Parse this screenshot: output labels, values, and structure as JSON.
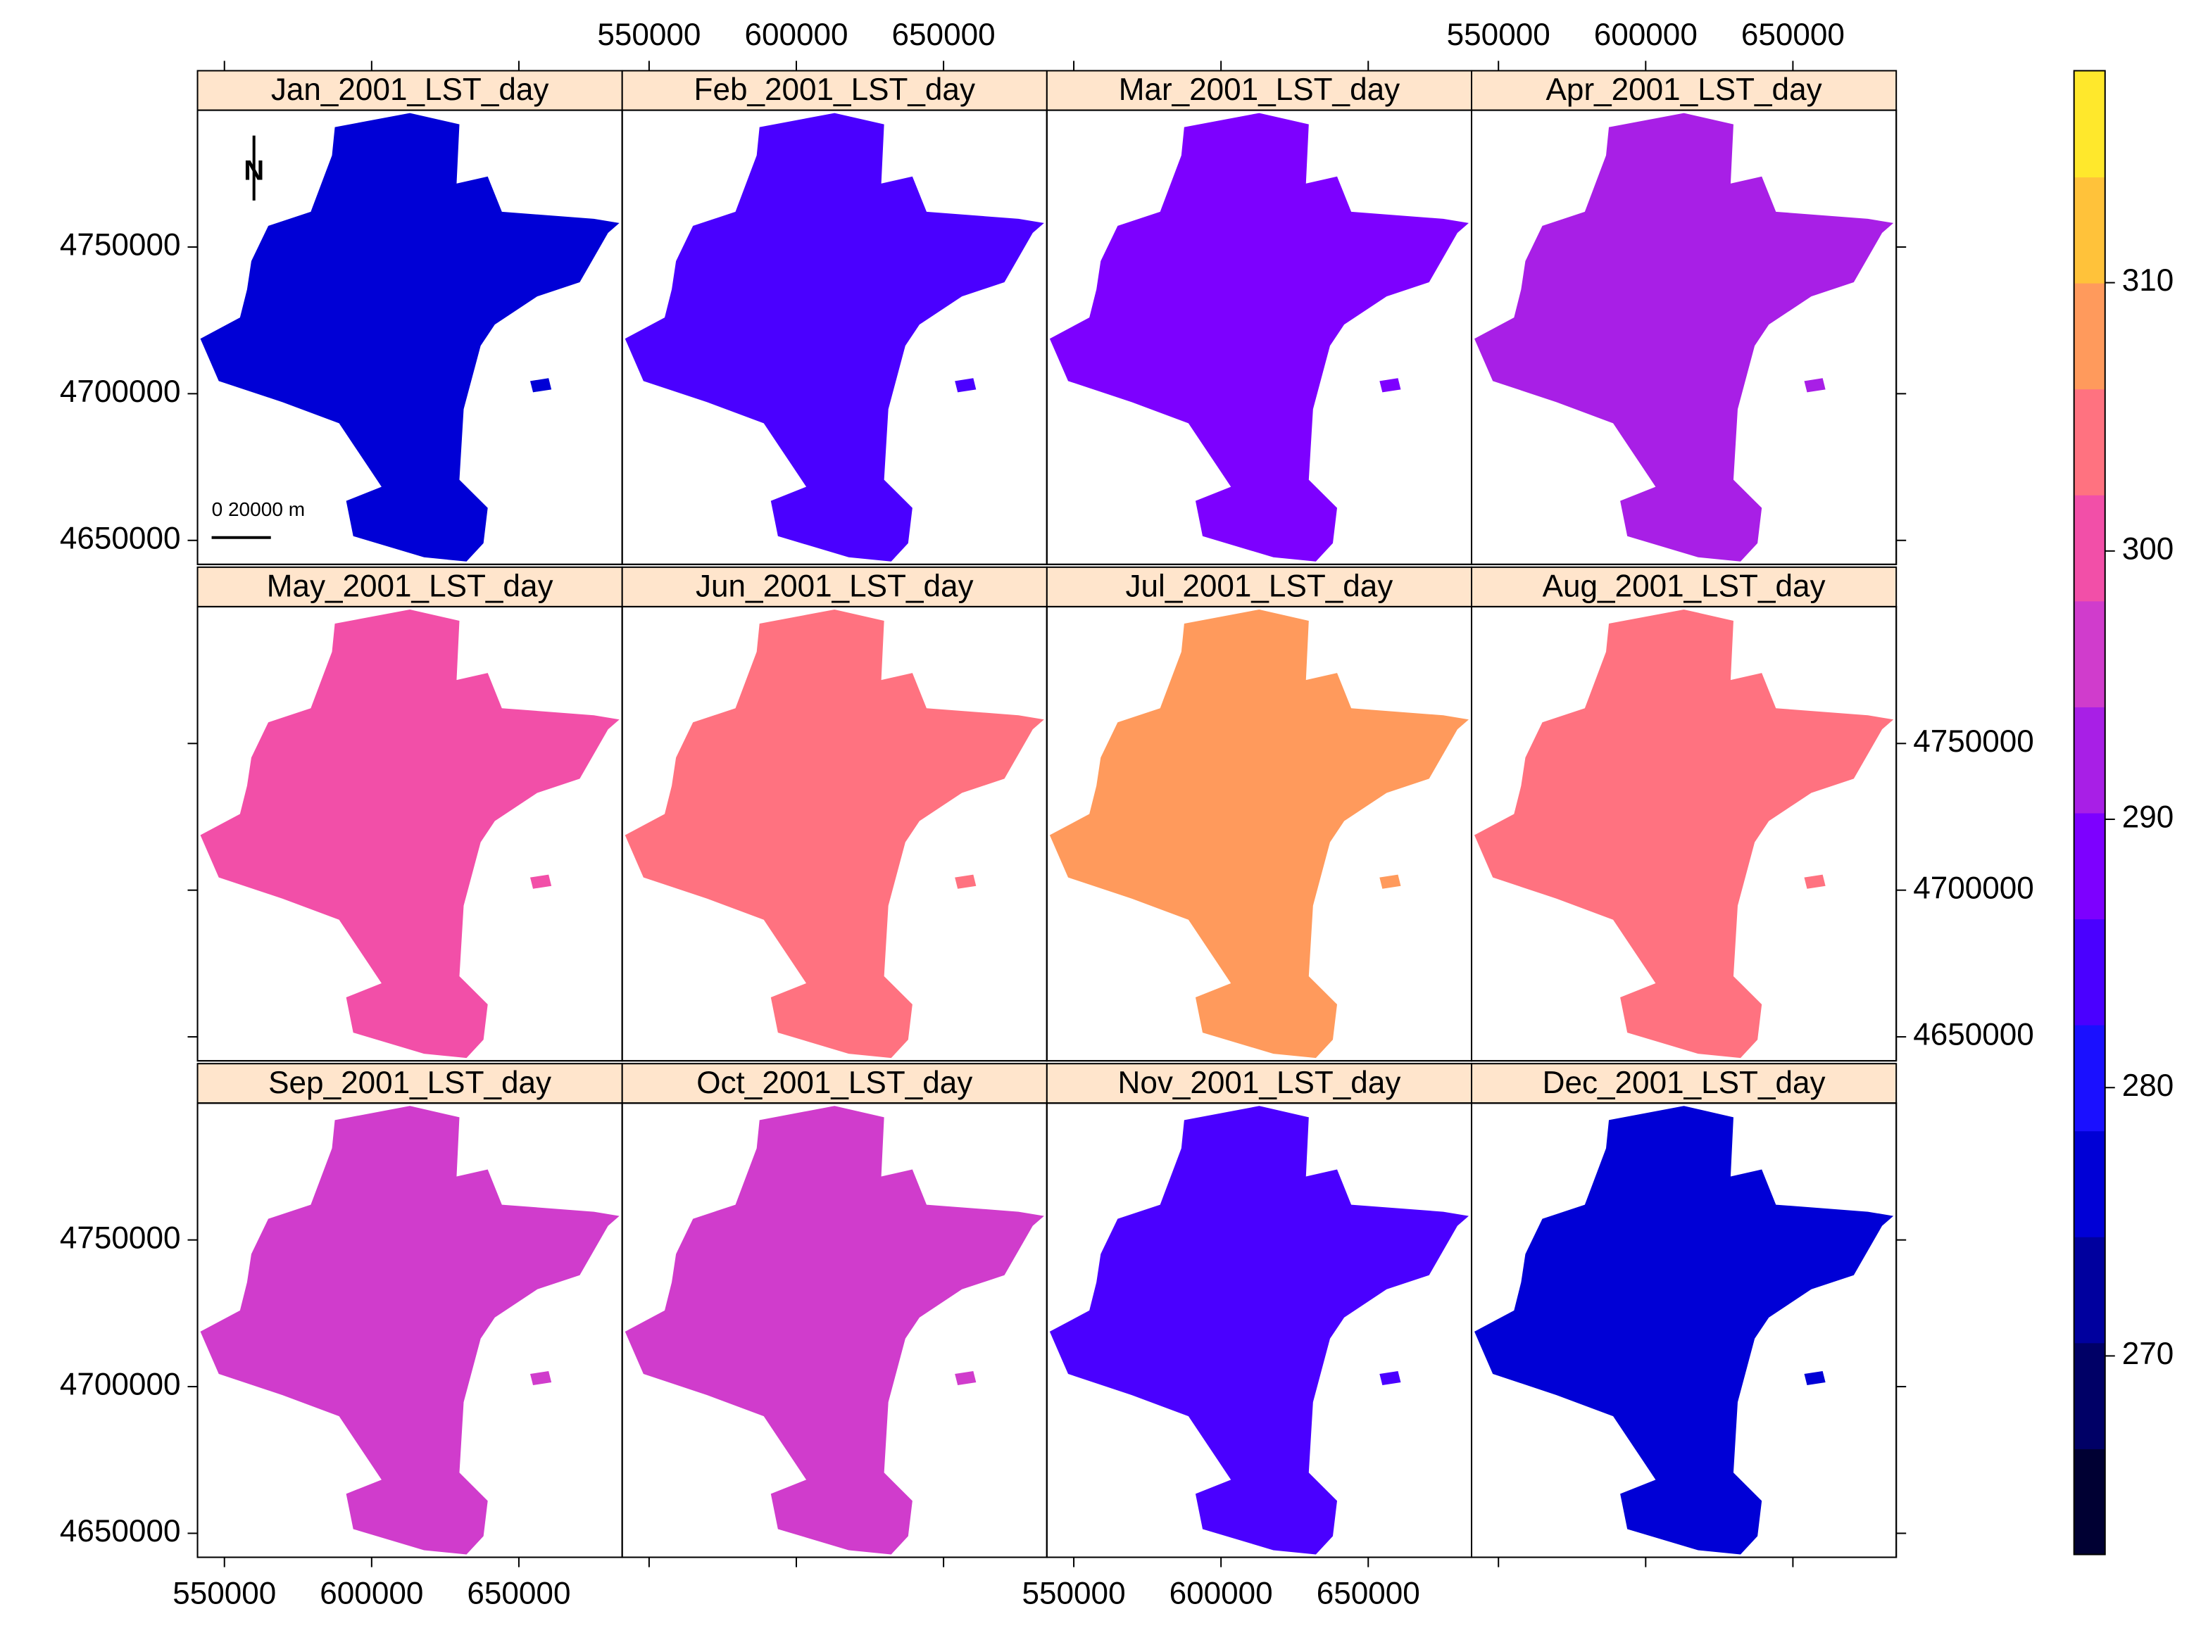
{
  "chart_data": {
    "type": "raster-panels",
    "panels": [
      {
        "title": "Jan_2001_LST_day",
        "value": 275
      },
      {
        "title": "Feb_2001_LST_day",
        "value": 283
      },
      {
        "title": "Mar_2001_LST_day",
        "value": 289
      },
      {
        "title": "Apr_2001_LST_day",
        "value": 293
      },
      {
        "title": "May_2001_LST_day",
        "value": 299
      },
      {
        "title": "Jun_2001_LST_day",
        "value": 304
      },
      {
        "title": "Jul_2001_LST_day",
        "value": 307
      },
      {
        "title": "Aug_2001_LST_day",
        "value": 305
      },
      {
        "title": "Sep_2001_LST_day",
        "value": 298
      },
      {
        "title": "Oct_2001_LST_day",
        "value": 295
      },
      {
        "title": "Nov_2001_LST_day",
        "value": 283
      },
      {
        "title": "Dec_2001_LST_day",
        "value": 277
      }
    ],
    "xlim": [
      540865,
      685096
    ],
    "xticks": [
      550000,
      600000,
      650000
    ],
    "ylim": [
      4641827,
      4796635
    ],
    "yticks": [
      4650000,
      4700000,
      4750000
    ],
    "colorkey": {
      "lim": [
        262.6,
        317.9
      ],
      "ticks": [
        270,
        280,
        290,
        300,
        310
      ],
      "colors": [
        "#000033",
        "#000066",
        "#00009e",
        "#0000d6",
        "#1a10ff",
        "#4a00ff",
        "#7d00ff",
        "#a81fe6",
        "#d03ccc",
        "#f24fa8",
        "#ff7280",
        "#ff9a5c",
        "#ffc23a",
        "#ffe82c"
      ]
    },
    "north_label": "N",
    "scalebar_label": "0  20000 m",
    "strip_color": "#ffe5cc"
  }
}
